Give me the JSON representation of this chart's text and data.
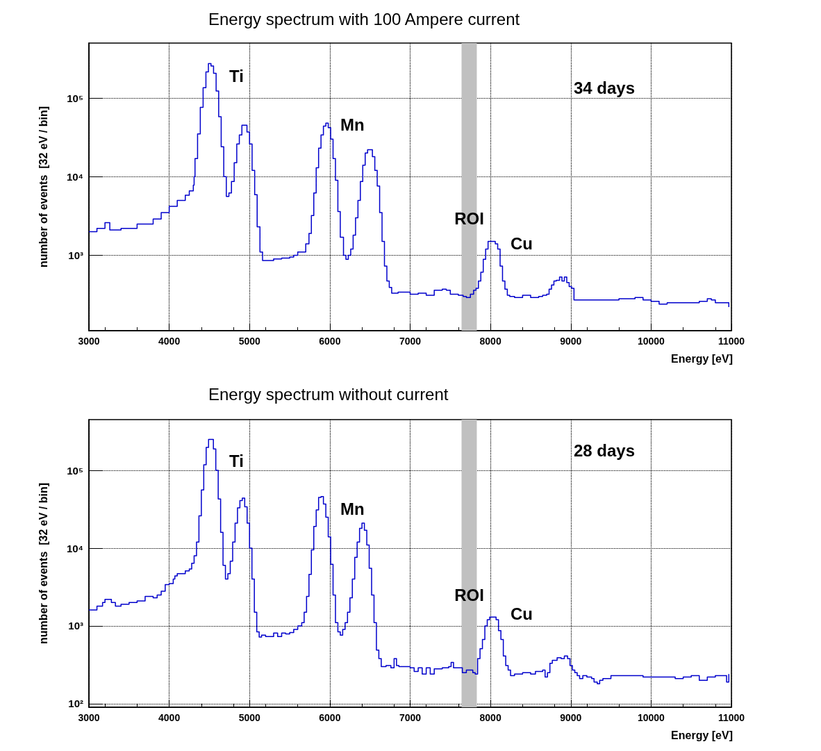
{
  "chart_data": [
    {
      "type": "step",
      "title": "Energy spectrum with 100 Ampere current",
      "xlabel": "Energy [eV]",
      "ylabel": "number of events  [32 eV / bin]",
      "log": "y",
      "grid": true,
      "marker": "none",
      "line_style": "solid",
      "xlim": [
        3000,
        11000
      ],
      "xticks": [
        3000,
        4000,
        5000,
        6000,
        7000,
        8000,
        9000,
        10000,
        11000
      ],
      "ylim": [
        110,
        500000
      ],
      "yticks": [
        {
          "value": 1000,
          "label": "10³"
        },
        {
          "value": 10000,
          "label": "10⁴"
        },
        {
          "value": 100000,
          "label": "10⁵"
        }
      ],
      "bands": [
        {
          "axis": "x",
          "from": 7640,
          "to": 7830,
          "label": "ROI",
          "color": "#c0c0c0"
        }
      ],
      "annotations": [
        "Ti",
        "Mn",
        "Cu",
        "34 days"
      ],
      "series": [
        {
          "color": "#0000cc",
          "x": [
            3000,
            3100,
            3200,
            3260,
            3400,
            3600,
            3800,
            3900,
            4000,
            4100,
            4200,
            4250,
            4300,
            4310,
            4321,
            4353,
            4387,
            4422,
            4457,
            4488,
            4520,
            4552,
            4584,
            4616,
            4647,
            4679,
            4711,
            4743,
            4775,
            4809,
            4841,
            4873,
            4905,
            4968,
            5000,
            5032,
            5064,
            5095,
            5130,
            5162,
            5300,
            5400,
            5500,
            5550,
            5600,
            5650,
            5700,
            5740,
            5770,
            5800,
            5830,
            5860,
            5890,
            5920,
            5950,
            5980,
            6010,
            6040,
            6070,
            6100,
            6130,
            6170,
            6200,
            6230,
            6260,
            6290,
            6320,
            6350,
            6380,
            6410,
            6440,
            6470,
            6500,
            6530,
            6560,
            6590,
            6620,
            6650,
            6680,
            6710,
            6740,
            6770,
            6850,
            7000,
            7100,
            7200,
            7300,
            7400,
            7450,
            7500,
            7600,
            7660,
            7700,
            7750,
            7790,
            7820,
            7850,
            7880,
            7910,
            7940,
            7970,
            8000,
            8030,
            8060,
            8090,
            8120,
            8150,
            8180,
            8210,
            8240,
            8300,
            8400,
            8500,
            8600,
            8650,
            8700,
            8730,
            8760,
            8790,
            8820,
            8860,
            8890,
            8920,
            8950,
            8980,
            9010,
            9040,
            9600,
            9800,
            9900,
            10000,
            10100,
            10200,
            10400,
            10600,
            10700,
            10750,
            10800,
            10900,
            10968
          ],
          "values": [
            2000,
            2200,
            2600,
            2100,
            2200,
            2500,
            2900,
            3500,
            4200,
            5000,
            5800,
            6600,
            7800,
            10000,
            17000,
            35000,
            76000,
            135000,
            215000,
            275000,
            255000,
            206000,
            123000,
            58000,
            24000,
            10000,
            5600,
            6200,
            8700,
            15000,
            26000,
            34000,
            45000,
            37000,
            26000,
            12000,
            5900,
            2300,
            1100,
            860,
            900,
            920,
            950,
            1000,
            1100,
            1100,
            1400,
            1900,
            3200,
            6200,
            13000,
            23000,
            34000,
            44000,
            48000,
            42000,
            30000,
            17000,
            9000,
            3600,
            1700,
            1000,
            890,
            1000,
            1200,
            1800,
            3000,
            5000,
            8700,
            14000,
            20000,
            22000,
            22000,
            18000,
            12000,
            7600,
            3500,
            1500,
            730,
            470,
            390,
            330,
            340,
            320,
            330,
            310,
            360,
            370,
            360,
            320,
            310,
            300,
            290,
            320,
            360,
            380,
            470,
            610,
            890,
            1200,
            1500,
            1500,
            1500,
            1400,
            1200,
            730,
            470,
            370,
            310,
            300,
            290,
            310,
            290,
            300,
            310,
            320,
            370,
            420,
            470,
            480,
            530,
            470,
            530,
            450,
            400,
            380,
            270,
            280,
            290,
            270,
            260,
            240,
            250,
            250,
            260,
            280,
            270,
            250,
            250,
            220
          ]
        }
      ]
    },
    {
      "type": "step",
      "title": "Energy spectrum without current",
      "xlabel": "Energy [eV]",
      "ylabel": "number of events  [32 eV / bin]",
      "log": "y",
      "grid": true,
      "marker": "none",
      "line_style": "solid",
      "xlim": [
        3000,
        11000
      ],
      "xticks": [
        3000,
        4000,
        5000,
        6000,
        7000,
        8000,
        9000,
        10000,
        11000
      ],
      "ylim": [
        90,
        450000
      ],
      "yticks": [
        {
          "value": 100,
          "label": "10²"
        },
        {
          "value": 1000,
          "label": "10³"
        },
        {
          "value": 10000,
          "label": "10⁴"
        },
        {
          "value": 100000,
          "label": "10⁵"
        }
      ],
      "bands": [
        {
          "axis": "x",
          "from": 7640,
          "to": 7830,
          "label": "ROI",
          "color": "#c0c0c0"
        }
      ],
      "annotations": [
        "Ti",
        "Mn",
        "Cu",
        "28 days"
      ],
      "series": [
        {
          "color": "#0000cc",
          "x": [
            3000,
            3100,
            3170,
            3200,
            3280,
            3330,
            3400,
            3500,
            3600,
            3700,
            3800,
            3850,
            3900,
            3950,
            4000,
            4050,
            4070,
            4100,
            4200,
            4250,
            4280,
            4310,
            4340,
            4370,
            4400,
            4430,
            4460,
            4490,
            4520,
            4550,
            4580,
            4610,
            4640,
            4670,
            4700,
            4730,
            4760,
            4790,
            4820,
            4850,
            4880,
            4910,
            4940,
            4970,
            5000,
            5030,
            5060,
            5090,
            5120,
            5150,
            5200,
            5300,
            5350,
            5400,
            5450,
            5500,
            5550,
            5600,
            5650,
            5680,
            5710,
            5740,
            5770,
            5800,
            5830,
            5860,
            5890,
            5920,
            5950,
            5980,
            6010,
            6040,
            6070,
            6100,
            6130,
            6160,
            6190,
            6220,
            6250,
            6280,
            6310,
            6340,
            6370,
            6400,
            6430,
            6460,
            6490,
            6520,
            6550,
            6580,
            6610,
            6640,
            6700,
            6760,
            6800,
            6830,
            6860,
            7000,
            7050,
            7100,
            7150,
            7200,
            7250,
            7300,
            7400,
            7480,
            7510,
            7540,
            7650,
            7700,
            7780,
            7810,
            7840,
            7870,
            7900,
            7930,
            7960,
            7990,
            8040,
            8070,
            8100,
            8130,
            8160,
            8190,
            8220,
            8250,
            8300,
            8400,
            8500,
            8560,
            8650,
            8680,
            8710,
            8740,
            8770,
            8830,
            8880,
            8920,
            8960,
            8990,
            9020,
            9050,
            9080,
            9110,
            9150,
            9200,
            9260,
            9290,
            9330,
            9360,
            9400,
            9500,
            9600,
            9900,
            10300,
            10400,
            10500,
            10600,
            10700,
            10800,
            10940,
            10968
          ],
          "values": [
            1600,
            1800,
            2000,
            2200,
            2000,
            1800,
            1900,
            2000,
            2100,
            2400,
            2300,
            2500,
            2800,
            3400,
            3500,
            4000,
            4400,
            4700,
            5100,
            5400,
            6400,
            8000,
            12000,
            26000,
            56000,
            118000,
            198000,
            250000,
            250000,
            189000,
            100000,
            43000,
            16000,
            6000,
            4000,
            4700,
            6800,
            12000,
            21000,
            33000,
            41000,
            44000,
            34000,
            21000,
            10000,
            4000,
            1500,
            840,
            720,
            760,
            730,
            810,
            730,
            810,
            790,
            820,
            900,
            1000,
            1100,
            1500,
            2400,
            4600,
            9500,
            19000,
            31000,
            45000,
            46000,
            37000,
            25000,
            14000,
            6200,
            2500,
            1100,
            840,
            760,
            900,
            1100,
            1500,
            2300,
            4000,
            7600,
            12000,
            18000,
            21000,
            17000,
            11000,
            5500,
            2500,
            1100,
            490,
            380,
            300,
            310,
            290,
            380,
            310,
            300,
            290,
            260,
            290,
            240,
            290,
            240,
            280,
            290,
            300,
            340,
            290,
            250,
            270,
            250,
            240,
            380,
            510,
            670,
            1000,
            1200,
            1300,
            1300,
            1200,
            870,
            670,
            410,
            310,
            270,
            230,
            240,
            250,
            240,
            260,
            270,
            220,
            250,
            330,
            360,
            390,
            380,
            410,
            380,
            310,
            270,
            250,
            230,
            210,
            230,
            220,
            210,
            190,
            180,
            200,
            210,
            230,
            230,
            220,
            210,
            220,
            230,
            200,
            220,
            230,
            190,
            240
          ]
        }
      ]
    }
  ]
}
